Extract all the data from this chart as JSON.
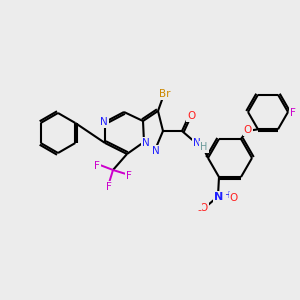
{
  "background_color": "#ececec",
  "bond_color": "#000000",
  "atom_colors": {
    "N": "#2020ff",
    "O": "#ff2020",
    "F": "#cc00cc",
    "Br": "#cc8800",
    "H": "#6a9a9a",
    "C": "#000000"
  },
  "figsize": [
    3.0,
    3.0
  ],
  "dpi": 100
}
